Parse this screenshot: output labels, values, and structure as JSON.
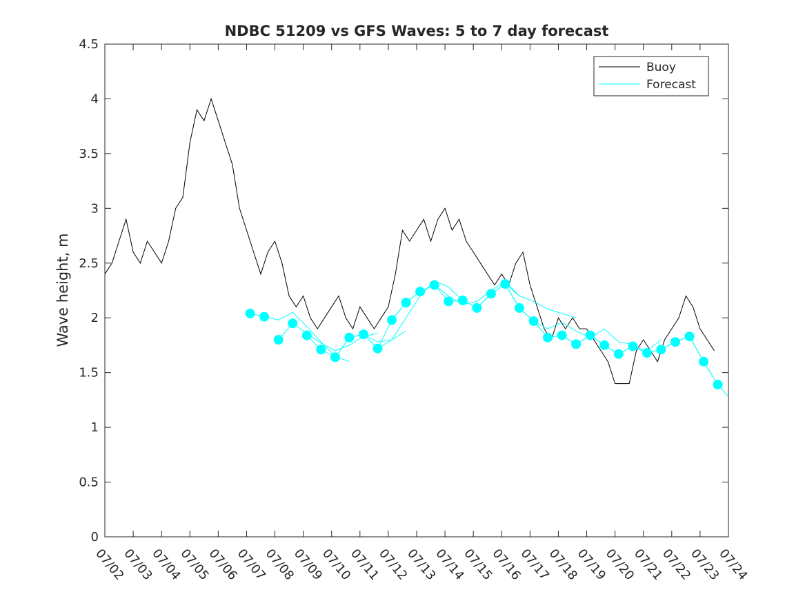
{
  "chart_data": {
    "type": "line",
    "title": "NDBC 51209 vs GFS Waves: 5 to 7 day forecast",
    "xlabel": "",
    "ylabel": "Wave height, m",
    "xlim": [
      "07/02",
      "07/24"
    ],
    "ylim": [
      0,
      4.5
    ],
    "x_tick_labels": [
      "07/02",
      "07/03",
      "07/04",
      "07/05",
      "07/06",
      "07/07",
      "07/08",
      "07/09",
      "07/10",
      "07/11",
      "07/12",
      "07/13",
      "07/14",
      "07/15",
      "07/16",
      "07/17",
      "07/18",
      "07/19",
      "07/20",
      "07/21",
      "07/22",
      "07/23",
      "07/24"
    ],
    "y_ticks": [
      0,
      0.5,
      1,
      1.5,
      2,
      2.5,
      3,
      3.5,
      4,
      4.5
    ],
    "y_tick_labels": [
      "0",
      "0.5",
      "1",
      "1.5",
      "2",
      "2.5",
      "3",
      "3.5",
      "4",
      "4.5"
    ],
    "grid": false,
    "legend_position": "top-right",
    "legend": [
      "Buoy",
      "Forecast"
    ],
    "colors": {
      "buoy": "#000000",
      "forecast": "#00ffff",
      "axes": "#262626"
    },
    "buoy": {
      "name": "Buoy",
      "x": [
        "07/02 00:00",
        "07/02 06:00",
        "07/02 12:00",
        "07/02 18:00",
        "07/03 00:00",
        "07/03 06:00",
        "07/03 12:00",
        "07/03 18:00",
        "07/04 00:00",
        "07/04 06:00",
        "07/04 12:00",
        "07/04 18:00",
        "07/05 00:00",
        "07/05 06:00",
        "07/05 12:00",
        "07/05 18:00",
        "07/06 00:00",
        "07/06 06:00",
        "07/06 12:00",
        "07/06 18:00",
        "07/07 00:00",
        "07/07 06:00",
        "07/07 12:00",
        "07/07 18:00",
        "07/08 00:00",
        "07/08 06:00",
        "07/08 12:00",
        "07/08 18:00",
        "07/09 00:00",
        "07/09 06:00",
        "07/09 12:00",
        "07/09 18:00",
        "07/10 00:00",
        "07/10 06:00",
        "07/10 12:00",
        "07/10 18:00",
        "07/11 00:00",
        "07/11 06:00",
        "07/11 12:00",
        "07/11 18:00",
        "07/12 00:00",
        "07/12 06:00",
        "07/12 12:00",
        "07/12 18:00",
        "07/13 00:00",
        "07/13 06:00",
        "07/13 12:00",
        "07/13 18:00",
        "07/14 00:00",
        "07/14 06:00",
        "07/14 12:00",
        "07/14 18:00",
        "07/15 00:00",
        "07/15 06:00",
        "07/15 12:00",
        "07/15 18:00",
        "07/16 00:00",
        "07/16 06:00",
        "07/16 12:00",
        "07/16 18:00",
        "07/17 00:00",
        "07/17 06:00",
        "07/17 12:00",
        "07/17 18:00",
        "07/18 00:00",
        "07/18 06:00",
        "07/18 12:00",
        "07/18 18:00",
        "07/19 00:00",
        "07/19 06:00",
        "07/19 12:00",
        "07/19 18:00",
        "07/20 00:00",
        "07/20 06:00",
        "07/20 12:00",
        "07/20 18:00",
        "07/21 00:00",
        "07/21 06:00",
        "07/21 12:00",
        "07/21 18:00",
        "07/22 00:00",
        "07/22 06:00",
        "07/22 12:00",
        "07/22 18:00",
        "07/23 00:00",
        "07/23 06:00",
        "07/23 12:00"
      ],
      "y": [
        2.4,
        2.5,
        2.7,
        2.9,
        2.6,
        2.5,
        2.7,
        2.6,
        2.5,
        2.7,
        3.0,
        3.1,
        3.6,
        3.9,
        3.8,
        4.0,
        3.8,
        3.6,
        3.4,
        3.0,
        2.8,
        2.6,
        2.4,
        2.6,
        2.7,
        2.5,
        2.2,
        2.1,
        2.2,
        2.0,
        1.9,
        2.0,
        2.1,
        2.2,
        2.0,
        1.9,
        2.1,
        2.0,
        1.9,
        2.0,
        2.1,
        2.4,
        2.8,
        2.7,
        2.8,
        2.9,
        2.7,
        2.9,
        3.0,
        2.8,
        2.9,
        2.7,
        2.6,
        2.5,
        2.4,
        2.3,
        2.4,
        2.3,
        2.5,
        2.6,
        2.3,
        2.1,
        1.9,
        1.8,
        2.0,
        1.9,
        2.0,
        1.9,
        1.9,
        1.8,
        1.7,
        1.6,
        1.4,
        1.4,
        1.4,
        1.7,
        1.8,
        1.7,
        1.6,
        1.8,
        1.9,
        2.0,
        2.2,
        2.1,
        1.9,
        1.8,
        1.7
      ]
    },
    "forecast_points": {
      "name": "Forecast",
      "x": [
        "07/07 03:00",
        "07/07 15:00",
        "07/08 03:00",
        "07/08 15:00",
        "07/09 03:00",
        "07/09 15:00",
        "07/10 03:00",
        "07/10 15:00",
        "07/11 03:00",
        "07/11 15:00",
        "07/12 03:00",
        "07/12 15:00",
        "07/13 03:00",
        "07/13 15:00",
        "07/14 03:00",
        "07/14 15:00",
        "07/15 03:00",
        "07/15 15:00",
        "07/16 03:00",
        "07/16 15:00",
        "07/17 03:00",
        "07/17 15:00",
        "07/18 03:00",
        "07/18 15:00",
        "07/19 03:00",
        "07/19 15:00",
        "07/20 03:00",
        "07/20 15:00",
        "07/21 03:00",
        "07/21 15:00",
        "07/22 03:00",
        "07/22 15:00",
        "07/23 03:00",
        "07/23 15:00"
      ],
      "y": [
        2.04,
        2.01,
        1.8,
        1.95,
        1.84,
        1.71,
        1.64,
        1.82,
        1.85,
        1.72,
        1.98,
        2.14,
        2.24,
        2.3,
        2.15,
        2.16,
        2.09,
        2.22,
        2.31,
        2.09,
        1.97,
        1.82,
        1.84,
        1.76,
        1.84,
        1.75,
        1.67,
        1.74,
        1.68,
        1.71,
        1.78,
        1.83,
        1.6,
        1.39
      ]
    },
    "forecast_lines": [
      {
        "x": [
          "07/07 03:00",
          "07/07 15:00",
          "07/08 03:00",
          "07/08 15:00",
          "07/09 03:00",
          "07/09 15:00",
          "07/10 03:00",
          "07/10 15:00"
        ],
        "y": [
          2.04,
          2.01,
          1.98,
          2.05,
          1.92,
          1.78,
          1.65,
          1.6
        ]
      },
      {
        "x": [
          "07/08 03:00",
          "07/08 15:00",
          "07/09 03:00",
          "07/09 15:00",
          "07/10 03:00",
          "07/10 15:00",
          "07/11 03:00",
          "07/11 15:00"
        ],
        "y": [
          1.8,
          1.95,
          1.86,
          1.77,
          1.7,
          1.75,
          1.83,
          1.86
        ]
      },
      {
        "x": [
          "07/09 03:00",
          "07/09 15:00",
          "07/10 03:00",
          "07/10 15:00",
          "07/11 03:00",
          "07/11 15:00",
          "07/12 03:00",
          "07/12 15:00"
        ],
        "y": [
          1.84,
          1.71,
          1.64,
          1.82,
          1.85,
          1.78,
          1.8,
          1.88
        ]
      },
      {
        "x": [
          "07/10 03:00",
          "07/10 15:00",
          "07/11 03:00",
          "07/11 15:00",
          "07/12 03:00",
          "07/12 15:00",
          "07/13 03:00",
          "07/13 15:00"
        ],
        "y": [
          1.64,
          1.82,
          1.85,
          1.72,
          1.98,
          2.14,
          2.24,
          2.3
        ]
      },
      {
        "x": [
          "07/11 03:00",
          "07/11 15:00",
          "07/12 03:00",
          "07/12 15:00",
          "07/13 03:00",
          "07/13 15:00",
          "07/14 03:00",
          "07/14 15:00"
        ],
        "y": [
          1.85,
          1.72,
          1.8,
          2.0,
          2.2,
          2.34,
          2.28,
          2.16
        ]
      },
      {
        "x": [
          "07/12 03:00",
          "07/12 15:00",
          "07/13 03:00",
          "07/13 15:00",
          "07/14 03:00",
          "07/14 15:00",
          "07/15 03:00",
          "07/15 15:00"
        ],
        "y": [
          1.98,
          2.14,
          2.24,
          2.3,
          2.15,
          2.16,
          2.09,
          2.22
        ]
      },
      {
        "x": [
          "07/13 03:00",
          "07/13 15:00",
          "07/14 03:00",
          "07/14 15:00",
          "07/15 03:00",
          "07/15 15:00",
          "07/16 03:00",
          "07/16 15:00"
        ],
        "y": [
          2.24,
          2.3,
          2.2,
          2.12,
          2.15,
          2.25,
          2.33,
          2.2
        ]
      },
      {
        "x": [
          "07/14 03:00",
          "07/14 15:00",
          "07/15 03:00",
          "07/15 15:00",
          "07/16 03:00",
          "07/16 15:00",
          "07/17 03:00",
          "07/17 15:00"
        ],
        "y": [
          2.15,
          2.16,
          2.09,
          2.22,
          2.31,
          2.09,
          1.97,
          1.82
        ]
      },
      {
        "x": [
          "07/15 03:00",
          "07/15 15:00",
          "07/16 03:00",
          "07/16 15:00",
          "07/17 03:00",
          "07/17 15:00",
          "07/18 03:00",
          "07/18 15:00"
        ],
        "y": [
          2.09,
          2.22,
          2.31,
          2.2,
          2.15,
          2.08,
          2.04,
          2.0
        ]
      },
      {
        "x": [
          "07/16 03:00",
          "07/16 15:00",
          "07/17 03:00",
          "07/17 15:00",
          "07/18 03:00",
          "07/18 15:00",
          "07/19 03:00",
          "07/19 15:00"
        ],
        "y": [
          2.31,
          2.09,
          1.97,
          1.82,
          1.84,
          1.76,
          1.84,
          1.75
        ]
      },
      {
        "x": [
          "07/17 03:00",
          "07/17 15:00",
          "07/18 03:00",
          "07/18 15:00",
          "07/19 03:00",
          "07/19 15:00",
          "07/20 03:00",
          "07/20 15:00"
        ],
        "y": [
          1.97,
          1.9,
          1.96,
          1.88,
          1.82,
          1.9,
          1.78,
          1.76
        ]
      },
      {
        "x": [
          "07/18 03:00",
          "07/18 15:00",
          "07/19 03:00",
          "07/19 15:00",
          "07/20 03:00",
          "07/20 15:00",
          "07/21 03:00",
          "07/21 15:00"
        ],
        "y": [
          1.84,
          1.76,
          1.84,
          1.75,
          1.67,
          1.74,
          1.7,
          1.8
        ]
      },
      {
        "x": [
          "07/19 03:00",
          "07/19 15:00",
          "07/20 03:00",
          "07/20 15:00",
          "07/21 03:00",
          "07/21 15:00",
          "07/22 03:00",
          "07/22 15:00"
        ],
        "y": [
          1.84,
          1.75,
          1.67,
          1.74,
          1.68,
          1.71,
          1.78,
          1.83
        ]
      },
      {
        "x": [
          "07/20 03:00",
          "07/20 15:00",
          "07/21 03:00",
          "07/21 15:00",
          "07/22 03:00",
          "07/22 15:00",
          "07/23 03:00",
          "07/23 15:00"
        ],
        "y": [
          1.67,
          1.74,
          1.68,
          1.71,
          1.78,
          1.83,
          1.6,
          1.39
        ]
      },
      {
        "x": [
          "07/21 03:00",
          "07/21 15:00",
          "07/22 03:00",
          "07/22 15:00",
          "07/23 03:00",
          "07/23 15:00",
          "07/24 00:00"
        ],
        "y": [
          1.68,
          1.71,
          1.78,
          1.83,
          1.6,
          1.39,
          1.28
        ]
      }
    ]
  }
}
